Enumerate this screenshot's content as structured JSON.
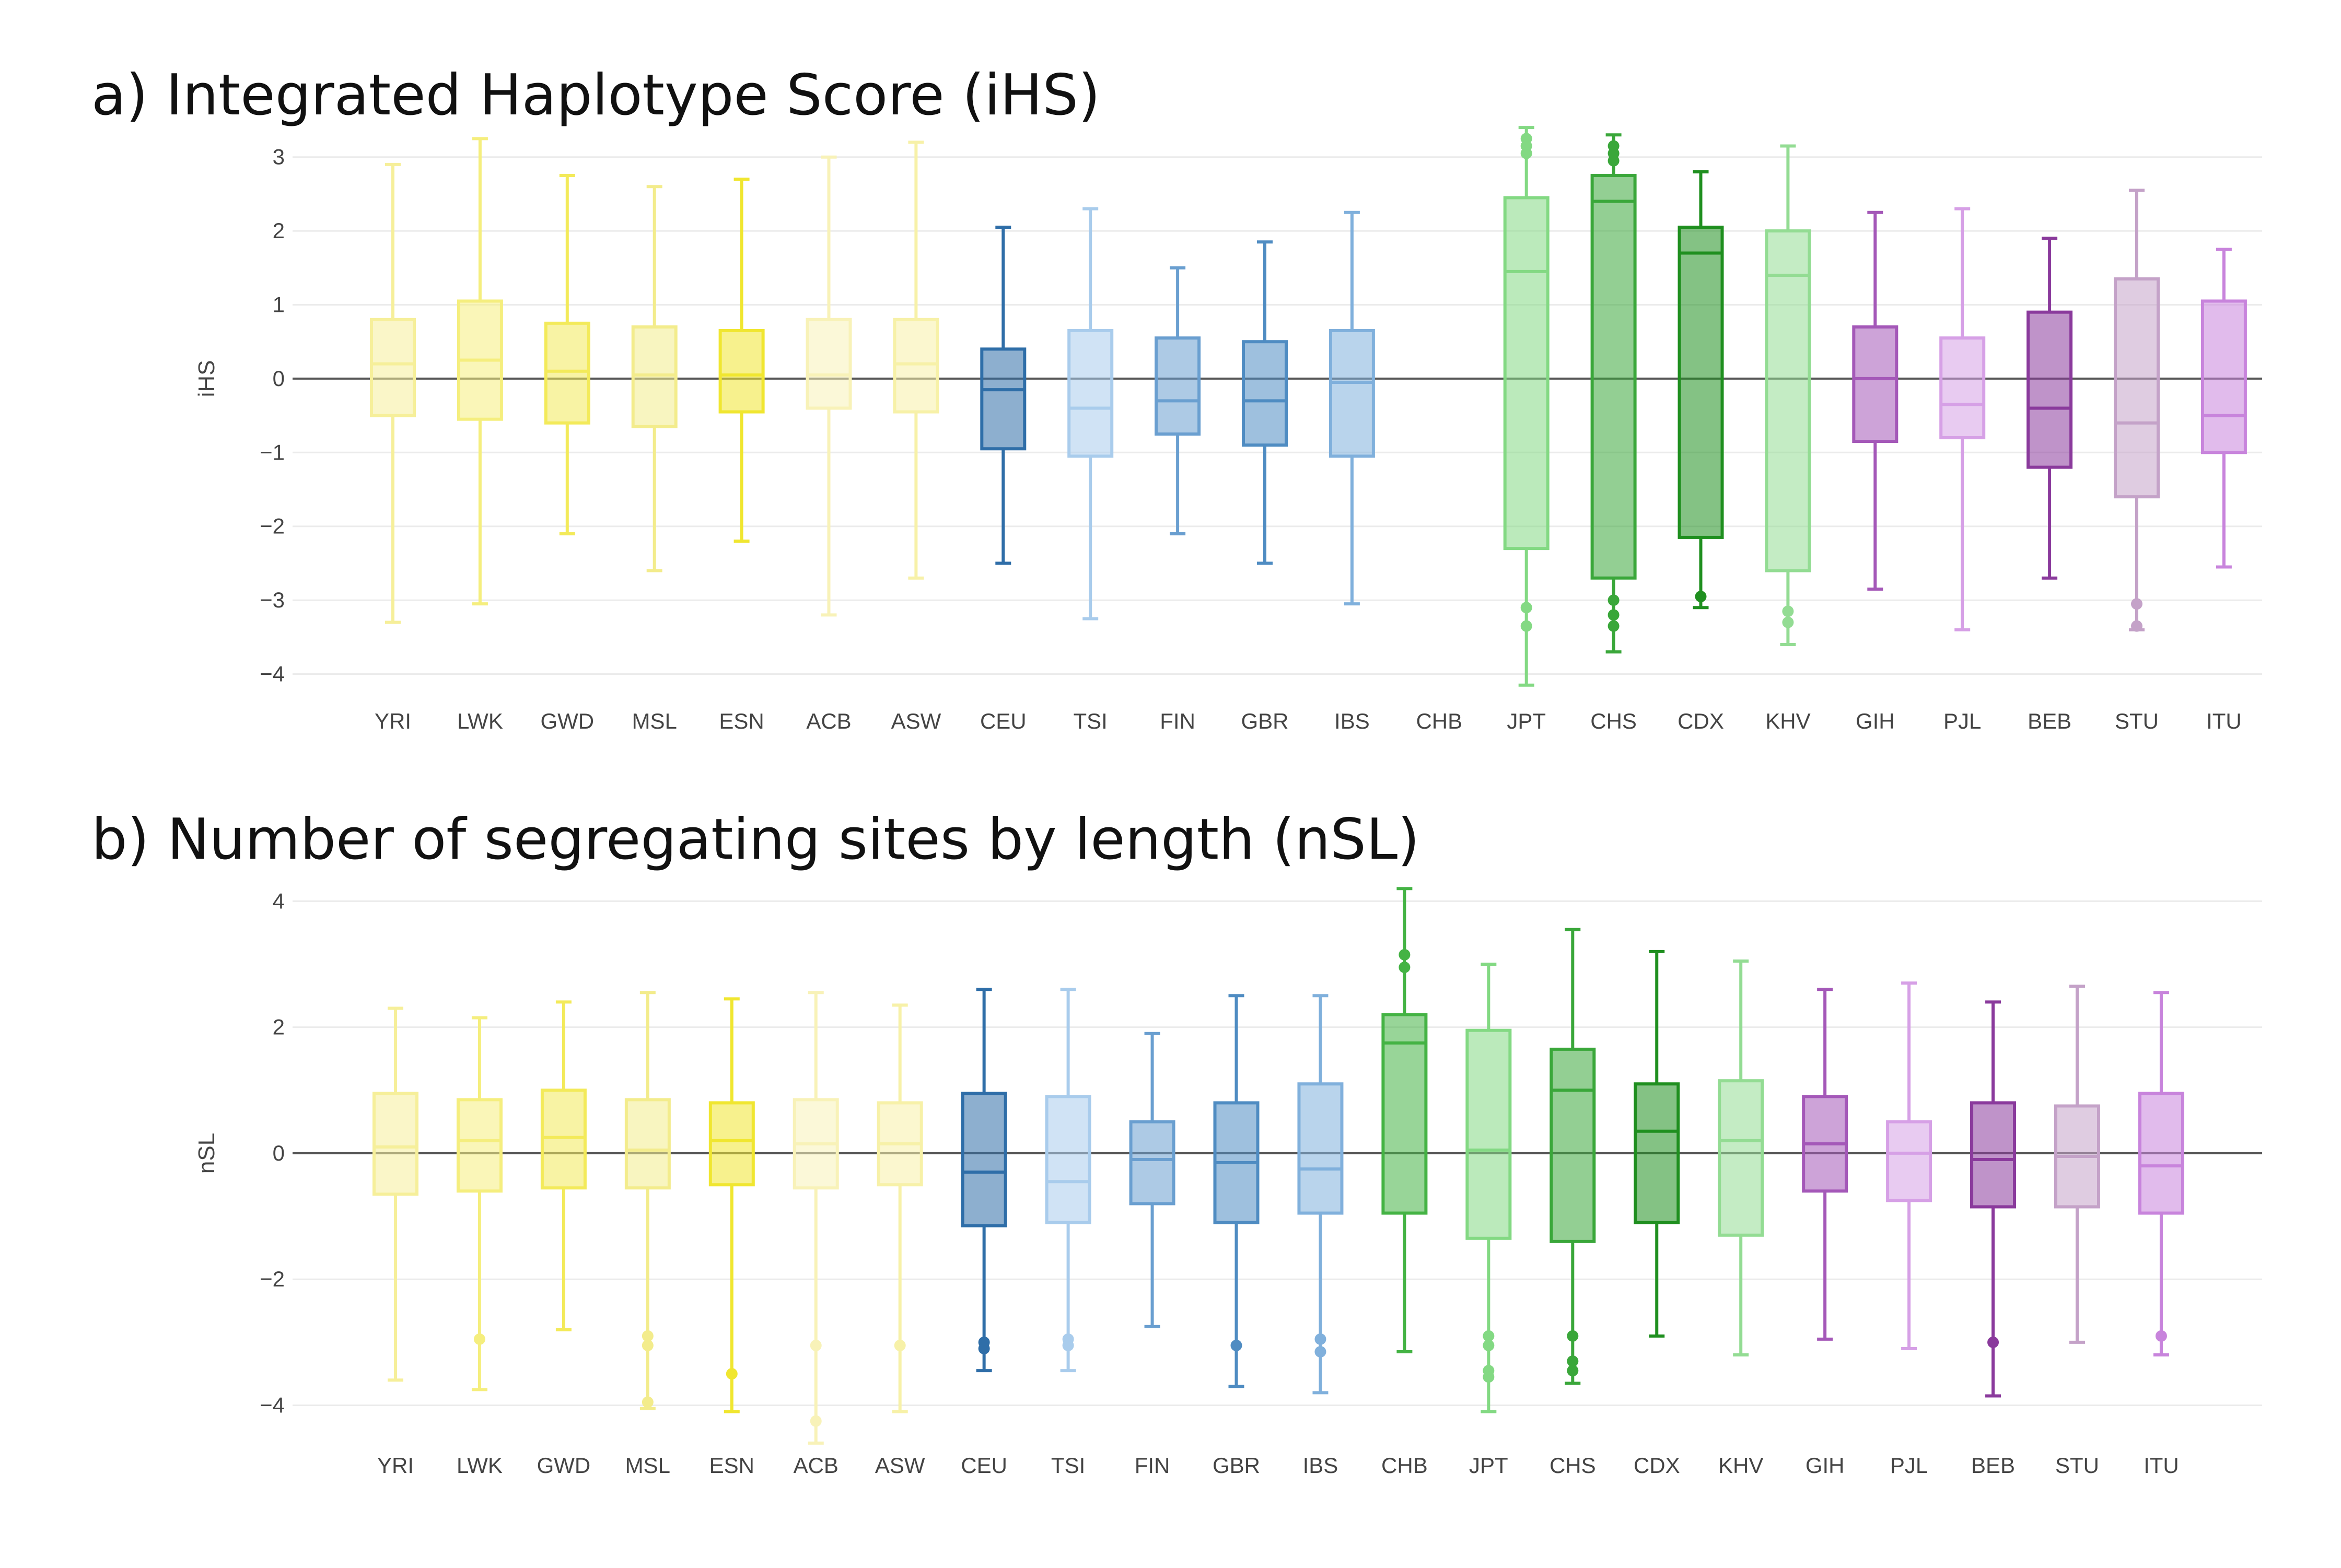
{
  "categories": [
    "YRI",
    "LWK",
    "GWD",
    "MSL",
    "ESN",
    "ACB",
    "ASW",
    "CEU",
    "TSI",
    "FIN",
    "GBR",
    "IBS",
    "CHB",
    "JPT",
    "CHS",
    "CDX",
    "KHV",
    "GIH",
    "PJL",
    "BEB",
    "STU",
    "ITU"
  ],
  "colors": {
    "YRI": "#f6ef9a",
    "LWK": "#f5ee7e",
    "GWD": "#f3ea5a",
    "MSL": "#f3ec8c",
    "ESN": "#f0e630",
    "ACB": "#f8f2b8",
    "ASW": "#f7f1a8",
    "CEU": "#2f6ea8",
    "TSI": "#a9ccec",
    "FIN": "#6a9fd0",
    "GBR": "#4f8cc2",
    "IBS": "#80b0dc",
    "CHB": "#44b344",
    "JPT": "#83d983",
    "CHS": "#3aa73a",
    "CDX": "#1f8f1f",
    "KHV": "#93dc93",
    "GIH": "#a458b8",
    "PJL": "#d6a0e6",
    "BEB": "#8a3a9c",
    "STU": "#c4a2c8",
    "ITU": "#c884dc"
  },
  "chart_data": [
    {
      "type": "box",
      "title": "a) Integrated Haplotype Score (iHS)",
      "ylabel": "iHS",
      "ylim": [
        -4.35,
        3.5
      ],
      "yticks": [
        3,
        2,
        1,
        0,
        -1,
        -2,
        -3,
        -4
      ],
      "ytick_labels": [
        "3",
        "2",
        "1",
        "0",
        "−1",
        "−2",
        "−3",
        "−4"
      ],
      "series": [
        {
          "cat": "YRI",
          "wlo": -3.3,
          "q1": -0.5,
          "med": 0.2,
          "q3": 0.8,
          "whi": 2.9,
          "out": []
        },
        {
          "cat": "LWK",
          "wlo": -3.05,
          "q1": -0.55,
          "med": 0.25,
          "q3": 1.05,
          "whi": 3.25,
          "out": []
        },
        {
          "cat": "GWD",
          "wlo": -2.1,
          "q1": -0.6,
          "med": 0.1,
          "q3": 0.75,
          "whi": 2.75,
          "out": []
        },
        {
          "cat": "MSL",
          "wlo": -2.6,
          "q1": -0.65,
          "med": 0.05,
          "q3": 0.7,
          "whi": 2.6,
          "out": []
        },
        {
          "cat": "ESN",
          "wlo": -2.2,
          "q1": -0.45,
          "med": 0.05,
          "q3": 0.65,
          "whi": 2.7,
          "out": []
        },
        {
          "cat": "ACB",
          "wlo": -3.2,
          "q1": -0.4,
          "med": 0.05,
          "q3": 0.8,
          "whi": 3.0,
          "out": []
        },
        {
          "cat": "ASW",
          "wlo": -2.7,
          "q1": -0.45,
          "med": 0.2,
          "q3": 0.8,
          "whi": 3.2,
          "out": []
        },
        {
          "cat": "CEU",
          "wlo": -2.5,
          "q1": -0.95,
          "med": -0.15,
          "q3": 0.4,
          "whi": 2.05,
          "out": []
        },
        {
          "cat": "TSI",
          "wlo": -3.25,
          "q1": -1.05,
          "med": -0.4,
          "q3": 0.65,
          "whi": 2.3,
          "out": []
        },
        {
          "cat": "FIN",
          "wlo": -2.1,
          "q1": -0.75,
          "med": -0.3,
          "q3": 0.55,
          "whi": 1.5,
          "out": []
        },
        {
          "cat": "GBR",
          "wlo": -2.5,
          "q1": -0.9,
          "med": -0.3,
          "q3": 0.5,
          "whi": 1.85,
          "out": []
        },
        {
          "cat": "IBS",
          "wlo": -3.05,
          "q1": -1.05,
          "med": -0.05,
          "q3": 0.65,
          "whi": 2.25,
          "out": []
        },
        {
          "cat": "CHB",
          "wlo": null,
          "q1": null,
          "med": null,
          "q3": null,
          "whi": null,
          "out": []
        },
        {
          "cat": "JPT",
          "wlo": -4.15,
          "q1": -2.3,
          "med": 1.45,
          "q3": 2.45,
          "whi": 3.4,
          "out": [
            3.05,
            3.15,
            3.25,
            -3.1,
            -3.35
          ]
        },
        {
          "cat": "CHS",
          "wlo": -3.7,
          "q1": -2.7,
          "med": 2.4,
          "q3": 2.75,
          "whi": 3.3,
          "out": [
            2.95,
            3.05,
            3.15,
            -3.0,
            -3.2,
            -3.35
          ]
        },
        {
          "cat": "CDX",
          "wlo": -3.1,
          "q1": -2.15,
          "med": 1.7,
          "q3": 2.05,
          "whi": 2.8,
          "out": [
            -2.95
          ]
        },
        {
          "cat": "KHV",
          "wlo": -3.6,
          "q1": -2.6,
          "med": 1.4,
          "q3": 2.0,
          "whi": 3.15,
          "out": [
            -3.15,
            -3.3
          ]
        },
        {
          "cat": "GIH",
          "wlo": -2.85,
          "q1": -0.85,
          "med": 0.0,
          "q3": 0.7,
          "whi": 2.25,
          "out": []
        },
        {
          "cat": "PJL",
          "wlo": -3.4,
          "q1": -0.8,
          "med": -0.35,
          "q3": 0.55,
          "whi": 2.3,
          "out": []
        },
        {
          "cat": "BEB",
          "wlo": -2.7,
          "q1": -1.2,
          "med": -0.4,
          "q3": 0.9,
          "whi": 1.9,
          "out": []
        },
        {
          "cat": "STU",
          "wlo": -3.4,
          "q1": -1.6,
          "med": -0.6,
          "q3": 1.35,
          "whi": 2.55,
          "out": [
            -3.05,
            -3.35
          ]
        },
        {
          "cat": "ITU",
          "wlo": -2.55,
          "q1": -1.0,
          "med": -0.5,
          "q3": 1.05,
          "whi": 1.75,
          "out": []
        }
      ]
    },
    {
      "type": "box",
      "title": "b) Number of segregating sites by length (nSL)",
      "ylabel": "nSL",
      "ylim": [
        -4.7,
        4.5
      ],
      "yticks": [
        4,
        2,
        0,
        -2,
        -4
      ],
      "ytick_labels": [
        "4",
        "2",
        "0",
        "−2",
        "−4"
      ],
      "series": [
        {
          "cat": "YRI",
          "wlo": -3.6,
          "q1": -0.65,
          "med": 0.1,
          "q3": 0.95,
          "whi": 2.3,
          "out": []
        },
        {
          "cat": "LWK",
          "wlo": -3.75,
          "q1": -0.6,
          "med": 0.2,
          "q3": 0.85,
          "whi": 2.15,
          "out": [
            -2.95
          ]
        },
        {
          "cat": "GWD",
          "wlo": -2.8,
          "q1": -0.55,
          "med": 0.25,
          "q3": 1.0,
          "whi": 2.4,
          "out": []
        },
        {
          "cat": "MSL",
          "wlo": -4.05,
          "q1": -0.55,
          "med": 0.05,
          "q3": 0.85,
          "whi": 2.55,
          "out": [
            -2.9,
            -3.05,
            -3.95
          ]
        },
        {
          "cat": "ESN",
          "wlo": -4.1,
          "q1": -0.5,
          "med": 0.2,
          "q3": 0.8,
          "whi": 2.45,
          "out": [
            -3.5
          ]
        },
        {
          "cat": "ACB",
          "wlo": -4.6,
          "q1": -0.55,
          "med": 0.15,
          "q3": 0.85,
          "whi": 2.55,
          "out": [
            -3.05,
            -4.25
          ]
        },
        {
          "cat": "ASW",
          "wlo": -4.1,
          "q1": -0.5,
          "med": 0.15,
          "q3": 0.8,
          "whi": 2.35,
          "out": [
            -3.05
          ]
        },
        {
          "cat": "CEU",
          "wlo": -3.45,
          "q1": -1.15,
          "med": -0.3,
          "q3": 0.95,
          "whi": 2.6,
          "out": [
            -3.0,
            -3.1
          ]
        },
        {
          "cat": "TSI",
          "wlo": -3.45,
          "q1": -1.1,
          "med": -0.45,
          "q3": 0.9,
          "whi": 2.6,
          "out": [
            -2.95,
            -3.05
          ]
        },
        {
          "cat": "FIN",
          "wlo": -2.75,
          "q1": -0.8,
          "med": -0.1,
          "q3": 0.5,
          "whi": 1.9,
          "out": []
        },
        {
          "cat": "GBR",
          "wlo": -3.7,
          "q1": -1.1,
          "med": -0.15,
          "q3": 0.8,
          "whi": 2.5,
          "out": [
            -3.05
          ]
        },
        {
          "cat": "IBS",
          "wlo": -3.8,
          "q1": -0.95,
          "med": -0.25,
          "q3": 1.1,
          "whi": 2.5,
          "out": [
            -2.95,
            -3.15
          ]
        },
        {
          "cat": "CHB",
          "wlo": -3.15,
          "q1": -0.95,
          "med": 1.75,
          "q3": 2.2,
          "whi": 4.2,
          "out": [
            2.95,
            3.15
          ]
        },
        {
          "cat": "JPT",
          "wlo": -4.1,
          "q1": -1.35,
          "med": 0.05,
          "q3": 1.95,
          "whi": 3.0,
          "out": [
            -2.9,
            -3.05,
            -3.45,
            -3.55
          ]
        },
        {
          "cat": "CHS",
          "wlo": -3.65,
          "q1": -1.4,
          "med": 1.0,
          "q3": 1.65,
          "whi": 3.55,
          "out": [
            -2.9,
            -3.3,
            -3.45
          ]
        },
        {
          "cat": "CDX",
          "wlo": -2.9,
          "q1": -1.1,
          "med": 0.35,
          "q3": 1.1,
          "whi": 3.2,
          "out": []
        },
        {
          "cat": "KHV",
          "wlo": -3.2,
          "q1": -1.3,
          "med": 0.2,
          "q3": 1.15,
          "whi": 3.05,
          "out": []
        },
        {
          "cat": "GIH",
          "wlo": -2.95,
          "q1": -0.6,
          "med": 0.15,
          "q3": 0.9,
          "whi": 2.6,
          "out": []
        },
        {
          "cat": "PJL",
          "wlo": -3.1,
          "q1": -0.75,
          "med": 0.0,
          "q3": 0.5,
          "whi": 2.7,
          "out": []
        },
        {
          "cat": "BEB",
          "wlo": -3.85,
          "q1": -0.85,
          "med": -0.1,
          "q3": 0.8,
          "whi": 2.4,
          "out": [
            -3.0
          ]
        },
        {
          "cat": "STU",
          "wlo": -3.0,
          "q1": -0.85,
          "med": -0.05,
          "q3": 0.75,
          "whi": 2.65,
          "out": []
        },
        {
          "cat": "ITU",
          "wlo": -3.2,
          "q1": -0.95,
          "med": -0.2,
          "q3": 0.95,
          "whi": 2.55,
          "out": [
            -2.9
          ]
        }
      ]
    }
  ]
}
